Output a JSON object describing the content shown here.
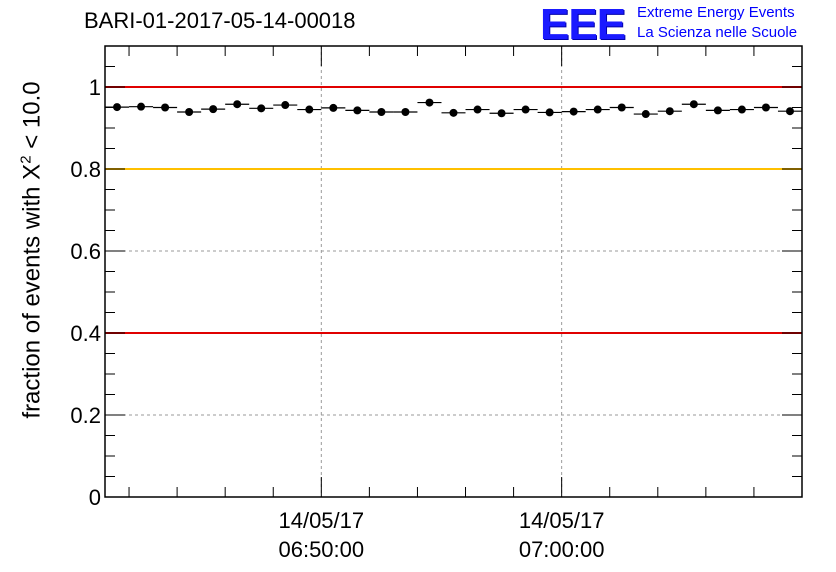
{
  "title": "BARI-01-2017-05-14-00018",
  "logo": {
    "mark": "EEE",
    "line1": "Extreme Energy Events",
    "line2": "La Scienza nelle Scuole"
  },
  "axis": {
    "ylabel_prefix": "fraction of events with ",
    "ylabel_chi": "X",
    "ylabel_sup": "2",
    "ylabel_suffix": " < 10.0"
  },
  "chart_data": {
    "type": "scatter",
    "x_unit": "time",
    "x_range": [
      "06:41:00",
      "07:10:00"
    ],
    "ylim": [
      0,
      1.1
    ],
    "y_ticks": [
      "0",
      "0.2",
      "0.4",
      "0.6",
      "0.8",
      "1"
    ],
    "x_ticks": [
      {
        "date": "14/05/17",
        "time": "06:50:00",
        "t": "06:50:00"
      },
      {
        "date": "14/05/17",
        "time": "07:00:00",
        "t": "07:00:00"
      }
    ],
    "grid": true,
    "reference_lines": [
      {
        "y": 1.0,
        "color": "#e00000"
      },
      {
        "y": 0.8,
        "color": "#ffc000"
      },
      {
        "y": 0.4,
        "color": "#e00000"
      }
    ],
    "bin_width_min": 1,
    "series": [
      {
        "points": [
          {
            "t": "06:41:30",
            "y": 0.951
          },
          {
            "t": "06:42:30",
            "y": 0.952
          },
          {
            "t": "06:43:30",
            "y": 0.95
          },
          {
            "t": "06:44:30",
            "y": 0.939
          },
          {
            "t": "06:45:30",
            "y": 0.946
          },
          {
            "t": "06:46:30",
            "y": 0.958
          },
          {
            "t": "06:47:30",
            "y": 0.948
          },
          {
            "t": "06:48:30",
            "y": 0.956
          },
          {
            "t": "06:49:30",
            "y": 0.945
          },
          {
            "t": "06:50:30",
            "y": 0.949
          },
          {
            "t": "06:51:30",
            "y": 0.943
          },
          {
            "t": "06:52:30",
            "y": 0.939
          },
          {
            "t": "06:53:30",
            "y": 0.939
          },
          {
            "t": "06:54:30",
            "y": 0.962
          },
          {
            "t": "06:55:30",
            "y": 0.937
          },
          {
            "t": "06:56:30",
            "y": 0.945
          },
          {
            "t": "06:57:30",
            "y": 0.936
          },
          {
            "t": "06:58:30",
            "y": 0.945
          },
          {
            "t": "06:59:30",
            "y": 0.938
          },
          {
            "t": "07:00:30",
            "y": 0.94
          },
          {
            "t": "07:01:30",
            "y": 0.945
          },
          {
            "t": "07:02:30",
            "y": 0.95
          },
          {
            "t": "07:03:30",
            "y": 0.934
          },
          {
            "t": "07:04:30",
            "y": 0.941
          },
          {
            "t": "07:05:30",
            "y": 0.958
          },
          {
            "t": "07:06:30",
            "y": 0.943
          },
          {
            "t": "07:07:30",
            "y": 0.945
          },
          {
            "t": "07:08:30",
            "y": 0.95
          },
          {
            "t": "07:09:30",
            "y": 0.941
          }
        ]
      }
    ]
  }
}
